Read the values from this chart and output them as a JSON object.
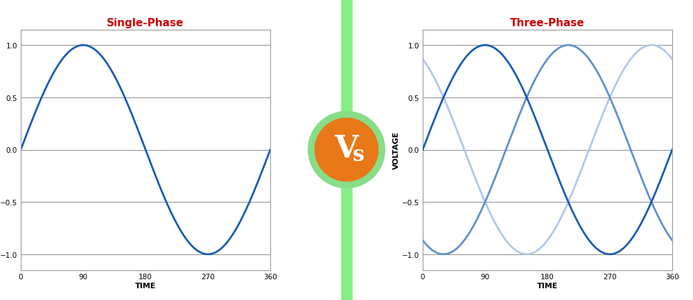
{
  "title_single": "Single-Phase",
  "title_three": "Three-Phase",
  "xlabel": "TIME",
  "ylabel": "VOLTAGE",
  "title_color": "#cc0000",
  "title_fontsize": 11,
  "label_fontsize": 8,
  "tick_fontsize": 7.5,
  "xticks": [
    0,
    90,
    180,
    270,
    360
  ],
  "yticks": [
    -1,
    -0.5,
    0,
    0.5,
    1
  ],
  "ylim": [
    -1.15,
    1.15
  ],
  "xlim": [
    0,
    360
  ],
  "line_color_dark": "#1a5ab5",
  "line_color_mid": "#6090cc",
  "line_color_light": "#b0c8e8",
  "line_width": 2.0,
  "fig_bg": "#ffffff",
  "vs_circle_color": "#e87818",
  "vs_ring_color": "#88dd88",
  "vs_text_color": "#ffffff",
  "vs_text": "Vs",
  "grid_color": "#777777",
  "grid_linewidth": 0.6,
  "box_facecolor": "#ffffff",
  "box_edgecolor": "#999999",
  "green_bar_color": "#88ee88",
  "green_bar_width": 12
}
